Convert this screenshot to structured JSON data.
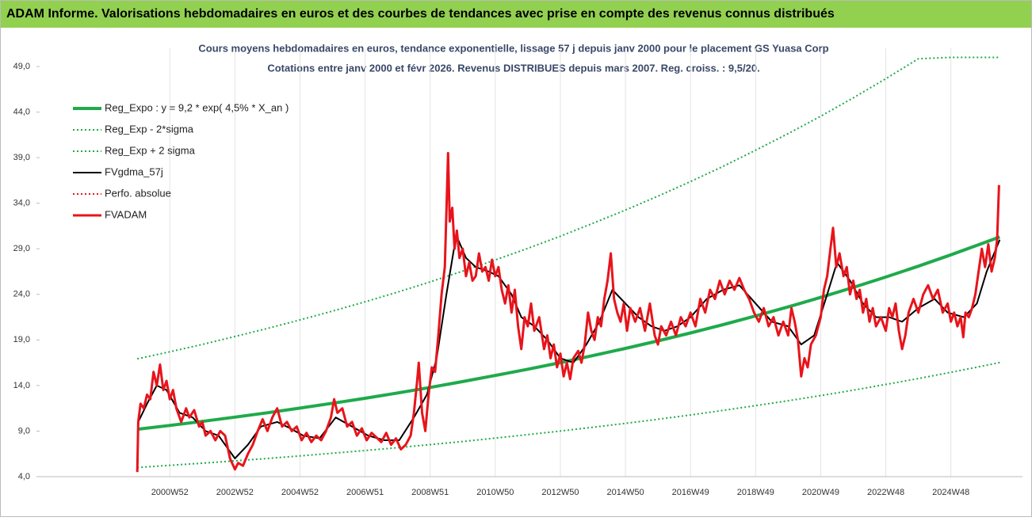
{
  "header": {
    "title": "ADAM Informe. Valorisations hebdomadaires en euros et des courbes de tendances avec prise en compte des revenus connus distribués"
  },
  "chart_data": {
    "type": "line",
    "title": "Cours moyens hebdomadaires en euros, tendance exponentielle, lissage 57 j depuis janv 2000 pour le placement GS Yuasa Corp",
    "subtitle": "Cotations entre janv 2000 et févr 2026. Revenus DISTRIBUES depuis mars 2007. Reg. croiss. : 9,5/20.",
    "xlim": [
      1997,
      2027.2
    ],
    "ylim": [
      4,
      51
    ],
    "xticks": [
      {
        "value": 2001,
        "label": "2000W52"
      },
      {
        "value": 2003,
        "label": "2002W52"
      },
      {
        "value": 2005,
        "label": "2004W52"
      },
      {
        "value": 2007,
        "label": "2006W51"
      },
      {
        "value": 2009,
        "label": "2008W51"
      },
      {
        "value": 2011,
        "label": "2010W50"
      },
      {
        "value": 2013,
        "label": "2012W50"
      },
      {
        "value": 2015,
        "label": "2014W50"
      },
      {
        "value": 2017,
        "label": "2016W49"
      },
      {
        "value": 2019,
        "label": "2018W49"
      },
      {
        "value": 2021,
        "label": "2020W49"
      },
      {
        "value": 2023,
        "label": "2022W48"
      },
      {
        "value": 2025,
        "label": "2024W48"
      }
    ],
    "yticks": [
      {
        "value": 4,
        "label": "4,0"
      },
      {
        "value": 9,
        "label": "9,0"
      },
      {
        "value": 14,
        "label": "14,0"
      },
      {
        "value": 19,
        "label": "19,0"
      },
      {
        "value": 24,
        "label": "24,0"
      },
      {
        "value": 29,
        "label": "29,0"
      },
      {
        "value": 34,
        "label": "34,0"
      },
      {
        "value": 39,
        "label": "39,0"
      },
      {
        "value": 44,
        "label": "44,0"
      },
      {
        "value": 49,
        "label": "49,0"
      }
    ],
    "xgrid": true,
    "legend": "top-left",
    "series": [
      {
        "name": "Reg_Expo : y = 9,2 * exp( 4,5% *  X_an )",
        "color": "#1faa4b",
        "style": "solid",
        "width": 4,
        "x": [
          2000,
          2001,
          2002,
          2003,
          2004,
          2005,
          2006,
          2007,
          2008,
          2009,
          2010,
          2011,
          2012,
          2013,
          2014,
          2015,
          2016,
          2017,
          2018,
          2019,
          2020,
          2021,
          2022,
          2023,
          2024,
          2025,
          2026,
          2026.5
        ],
        "values": [
          9.2,
          9.62,
          10.06,
          10.53,
          11.01,
          11.52,
          12.05,
          12.6,
          13.18,
          13.79,
          14.43,
          15.1,
          15.79,
          16.51,
          17.28,
          18.07,
          18.9,
          19.77,
          20.68,
          21.64,
          22.63,
          23.67,
          24.76,
          25.9,
          27.09,
          28.34,
          29.64,
          30.31
        ]
      },
      {
        "name": "Reg_Exp - 2*sigma",
        "color": "#1faa4b",
        "style": "dotted",
        "width": 2,
        "x": [
          2000,
          2001,
          2002,
          2003,
          2004,
          2005,
          2006,
          2007,
          2008,
          2009,
          2010,
          2011,
          2012,
          2013,
          2014,
          2015,
          2016,
          2017,
          2018,
          2019,
          2020,
          2021,
          2022,
          2023,
          2024,
          2025,
          2026,
          2026.5
        ],
        "values": [
          5.01,
          5.24,
          5.48,
          5.74,
          6.0,
          6.28,
          6.57,
          6.87,
          7.18,
          7.52,
          7.86,
          8.23,
          8.61,
          9.0,
          9.42,
          9.85,
          10.3,
          10.77,
          11.27,
          11.79,
          12.33,
          12.9,
          13.49,
          14.12,
          14.76,
          15.45,
          16.15,
          16.52
        ]
      },
      {
        "name": "Reg_Exp + 2 sigma",
        "color": "#1faa4b",
        "style": "dotted",
        "width": 2,
        "x": [
          2000,
          2001,
          2002,
          2003,
          2004,
          2005,
          2006,
          2007,
          2008,
          2009,
          2010,
          2011,
          2012,
          2013,
          2014,
          2015,
          2016,
          2017,
          2018,
          2019,
          2020,
          2021,
          2022,
          2023,
          2024,
          2025,
          2026,
          2026.5
        ],
        "values": [
          16.93,
          17.7,
          18.51,
          19.38,
          20.26,
          21.2,
          22.17,
          23.18,
          24.25,
          25.37,
          26.55,
          27.78,
          29.05,
          30.38,
          31.8,
          33.25,
          34.78,
          36.38,
          38.05,
          39.82,
          41.64,
          43.55,
          45.56,
          47.66,
          49.85,
          50,
          50,
          50
        ]
      },
      {
        "name": "FVgdma_57j",
        "color": "#000000",
        "style": "solid",
        "width": 2,
        "x": [
          2000.03,
          2000.3,
          2000.6,
          2000.9,
          2001.3,
          2001.7,
          2002.1,
          2002.5,
          2003.0,
          2003.4,
          2003.8,
          2004.3,
          2004.7,
          2005.1,
          2005.6,
          2006.1,
          2006.6,
          2007.1,
          2007.6,
          2008.05,
          2008.5,
          2008.9,
          2009.2,
          2009.5,
          2009.8,
          2010.1,
          2010.4,
          2010.8,
          2011.1,
          2011.5,
          2011.8,
          2012.2,
          2012.6,
          2013.0,
          2013.4,
          2013.8,
          2014.2,
          2014.6,
          2015.0,
          2015.4,
          2015.8,
          2016.2,
          2016.6,
          2017.0,
          2017.5,
          2018.0,
          2018.5,
          2019.0,
          2019.5,
          2020.0,
          2020.4,
          2020.8,
          2021.2,
          2021.5,
          2021.9,
          2022.3,
          2022.7,
          2023.1,
          2023.5,
          2024.0,
          2024.5,
          2024.9,
          2025.4,
          2025.8,
          2026.1,
          2026.5
        ],
        "values": [
          10,
          12,
          14,
          13.5,
          11,
          10.5,
          9,
          8.5,
          6,
          7.5,
          9.5,
          10,
          9.3,
          8.5,
          8.2,
          10.5,
          9.5,
          8.5,
          8,
          8,
          10.5,
          13,
          17,
          24,
          30.5,
          28,
          27,
          26.5,
          26,
          24,
          21.5,
          20.5,
          19,
          17,
          16.5,
          18.5,
          21,
          24.5,
          23,
          21.5,
          20.5,
          20,
          20.5,
          21.5,
          23.5,
          24.5,
          25,
          23,
          21,
          20.5,
          18.5,
          19.5,
          24,
          27.5,
          25.5,
          23,
          21.5,
          21.5,
          21,
          22.5,
          23.5,
          22,
          21.5,
          23,
          26.5,
          30
        ]
      },
      {
        "name": "Perfo. absolue",
        "color": "#e8141b",
        "style": "dotted",
        "width": 2,
        "x": [],
        "values": []
      },
      {
        "name": "FVADAM",
        "color": "#e8141b",
        "style": "solid",
        "width": 3,
        "x": [
          2000.0,
          2000.03,
          2000.1,
          2000.2,
          2000.3,
          2000.4,
          2000.5,
          2000.6,
          2000.7,
          2000.8,
          2000.9,
          2001.0,
          2001.1,
          2001.2,
          2001.35,
          2001.5,
          2001.6,
          2001.75,
          2001.9,
          2002.0,
          2002.1,
          2002.25,
          2002.4,
          2002.55,
          2002.7,
          2002.85,
          2003.0,
          2003.1,
          2003.25,
          2003.4,
          2003.55,
          2003.7,
          2003.85,
          2004.0,
          2004.15,
          2004.3,
          2004.45,
          2004.6,
          2004.75,
          2004.9,
          2005.05,
          2005.2,
          2005.35,
          2005.5,
          2005.65,
          2005.8,
          2005.95,
          2006.05,
          2006.15,
          2006.3,
          2006.45,
          2006.6,
          2006.75,
          2006.9,
          2007.05,
          2007.2,
          2007.35,
          2007.5,
          2007.65,
          2007.8,
          2007.95,
          2008.1,
          2008.25,
          2008.4,
          2008.5,
          2008.6,
          2008.65,
          2008.75,
          2008.85,
          2008.95,
          2009.05,
          2009.15,
          2009.25,
          2009.35,
          2009.45,
          2009.55,
          2009.6,
          2009.68,
          2009.75,
          2009.82,
          2009.9,
          2010.0,
          2010.1,
          2010.2,
          2010.3,
          2010.4,
          2010.5,
          2010.6,
          2010.7,
          2010.8,
          2010.9,
          2011.0,
          2011.1,
          2011.2,
          2011.3,
          2011.4,
          2011.5,
          2011.6,
          2011.7,
          2011.8,
          2011.9,
          2012.0,
          2012.1,
          2012.2,
          2012.35,
          2012.5,
          2012.6,
          2012.7,
          2012.8,
          2012.9,
          2013.0,
          2013.1,
          2013.2,
          2013.3,
          2013.4,
          2013.55,
          2013.65,
          2013.75,
          2013.85,
          2013.95,
          2014.05,
          2014.15,
          2014.25,
          2014.35,
          2014.45,
          2014.55,
          2014.65,
          2014.75,
          2014.85,
          2014.95,
          2015.05,
          2015.15,
          2015.3,
          2015.45,
          2015.6,
          2015.75,
          2015.9,
          2016.0,
          2016.1,
          2016.25,
          2016.4,
          2016.55,
          2016.7,
          2016.85,
          2017.0,
          2017.15,
          2017.3,
          2017.45,
          2017.6,
          2017.75,
          2017.9,
          2018.05,
          2018.2,
          2018.35,
          2018.5,
          2018.65,
          2018.8,
          2018.95,
          2019.1,
          2019.25,
          2019.4,
          2019.55,
          2019.7,
          2019.85,
          2020.0,
          2020.1,
          2020.2,
          2020.3,
          2020.4,
          2020.5,
          2020.6,
          2020.7,
          2020.85,
          2021.0,
          2021.1,
          2021.2,
          2021.3,
          2021.38,
          2021.48,
          2021.58,
          2021.7,
          2021.8,
          2021.9,
          2022.0,
          2022.1,
          2022.2,
          2022.3,
          2022.4,
          2022.5,
          2022.6,
          2022.7,
          2022.85,
          2023.0,
          2023.1,
          2023.2,
          2023.3,
          2023.4,
          2023.5,
          2023.6,
          2023.7,
          2023.85,
          2024.0,
          2024.15,
          2024.3,
          2024.45,
          2024.6,
          2024.75,
          2024.9,
          2025.0,
          2025.1,
          2025.2,
          2025.3,
          2025.38,
          2025.45,
          2025.55,
          2025.65,
          2025.75,
          2025.85,
          2025.95,
          2026.05,
          2026.15,
          2026.25,
          2026.35,
          2026.42,
          2026.48
        ],
        "values": [
          4.5,
          10,
          12,
          11.5,
          13,
          12.5,
          15.5,
          14,
          16.3,
          13.5,
          14.5,
          12.5,
          13.5,
          11.5,
          10,
          11.5,
          10.5,
          11.3,
          9.5,
          10,
          8.5,
          9,
          8,
          9,
          8.5,
          6,
          4.8,
          5.5,
          5.2,
          6.5,
          7.5,
          9,
          10.3,
          9,
          10.5,
          11.5,
          9.5,
          10,
          9,
          9.5,
          8,
          8.8,
          7.8,
          8.5,
          8,
          9,
          10.5,
          12.5,
          11,
          11.5,
          9.5,
          10,
          8.5,
          9.3,
          8,
          8.8,
          8.3,
          7.8,
          8.8,
          7.5,
          8.2,
          7,
          7.5,
          8.5,
          11,
          14.5,
          16.5,
          11,
          9,
          13,
          16,
          15.5,
          19.5,
          24,
          27,
          39.5,
          32,
          33.5,
          29,
          31,
          28,
          29,
          26,
          27.5,
          25.5,
          26,
          28.5,
          26.5,
          27,
          25.5,
          27.8,
          26,
          27,
          24.5,
          23,
          25,
          22,
          24.5,
          20.5,
          18,
          21.5,
          20.5,
          23,
          20,
          21.5,
          18,
          19.5,
          17,
          18.5,
          16,
          17.5,
          15,
          16.5,
          14.7,
          17,
          17.8,
          16.5,
          18.5,
          22,
          20,
          19,
          21.5,
          20.5,
          23.5,
          25.5,
          28.5,
          23.5,
          22,
          21,
          23,
          20,
          22.5,
          21,
          22.5,
          20,
          23,
          19.5,
          18.5,
          20.5,
          19.5,
          21,
          19.5,
          21.5,
          20.5,
          22,
          20.5,
          23.5,
          22,
          24.5,
          23.5,
          25.5,
          24,
          25.5,
          24.5,
          25.8,
          24.5,
          23.5,
          22,
          21,
          22.5,
          20.5,
          21.5,
          19.5,
          21,
          19.5,
          22.5,
          21,
          19,
          15,
          17,
          16,
          18.5,
          19.5,
          21.5,
          24.5,
          26,
          29,
          31.3,
          27,
          28.5,
          26,
          27,
          24,
          25.5,
          23.5,
          24.5,
          22,
          23.5,
          21,
          22.5,
          20.5,
          21.5,
          20,
          22.5,
          21.5,
          23,
          20,
          18,
          19.5,
          22,
          23.5,
          22,
          24,
          25,
          23.5,
          24.5,
          22,
          23,
          21,
          22,
          20.5,
          21.5,
          19.3,
          22,
          21.5,
          22.5,
          24,
          26.5,
          29,
          27,
          29.5,
          26.5,
          28,
          30,
          36
        ]
      }
    ]
  }
}
